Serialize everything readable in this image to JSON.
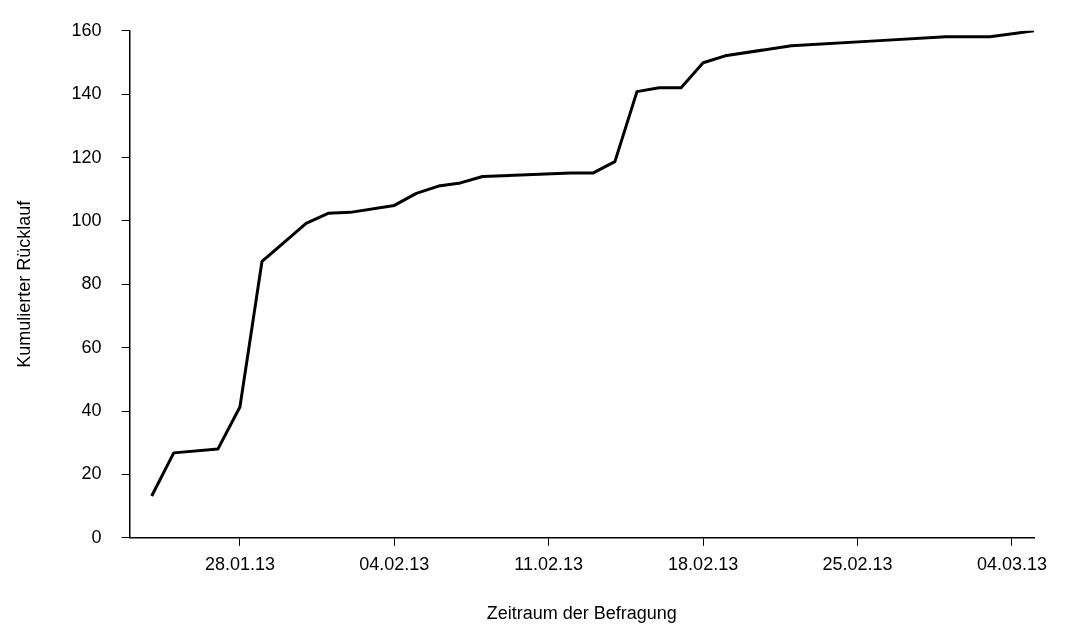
{
  "chart_data": {
    "type": "line",
    "xlabel": "Zeitraum der Befragung",
    "ylabel": "Kumulierter Rücklauf",
    "x": [
      "--01-24",
      "--01-25",
      "--01-27",
      "--01-28",
      "--01-29",
      "--01-31",
      "--02-01",
      "--02-02",
      "--02-04",
      "--02-05",
      "--02-06",
      "--02-07",
      "--02-08",
      "--02-12",
      "--02-13",
      "--02-14",
      "--02-15",
      "--02-16",
      "--02-17",
      "--02-18",
      "--02-19",
      "--02-22",
      "--02-26",
      "--03-01",
      "--03-03",
      "--03-05"
    ],
    "series": [
      {
        "color": "#000000",
        "values": [
          13.2,
          26.8,
          28,
          41.3,
          87.2,
          99.2,
          102.4,
          102.7,
          104.9,
          108.7,
          111,
          112,
          114,
          115.1,
          115.1,
          118.7,
          140.8,
          142,
          142,
          149.9,
          152.1,
          155.3,
          156.9,
          158.1,
          158.1,
          160
        ]
      }
    ],
    "xlim": [
      "--01-23",
      "--03-05"
    ],
    "xticks": [
      {
        "value": "--01-28",
        "label": "28.01.13"
      },
      {
        "value": "--02-04",
        "label": "04.02.13"
      },
      {
        "value": "--02-11",
        "label": "11.02.13"
      },
      {
        "value": "--02-18",
        "label": "18.02.13"
      },
      {
        "value": "--02-25",
        "label": "25.02.13"
      },
      {
        "value": "--03-04",
        "label": "04.03.13"
      }
    ],
    "ylim": [
      0,
      160
    ],
    "yticks": [
      0,
      20,
      40,
      60,
      80,
      100,
      120,
      140,
      160
    ],
    "grid": false,
    "legend": false,
    "marker": "none",
    "line_style": "solid"
  }
}
